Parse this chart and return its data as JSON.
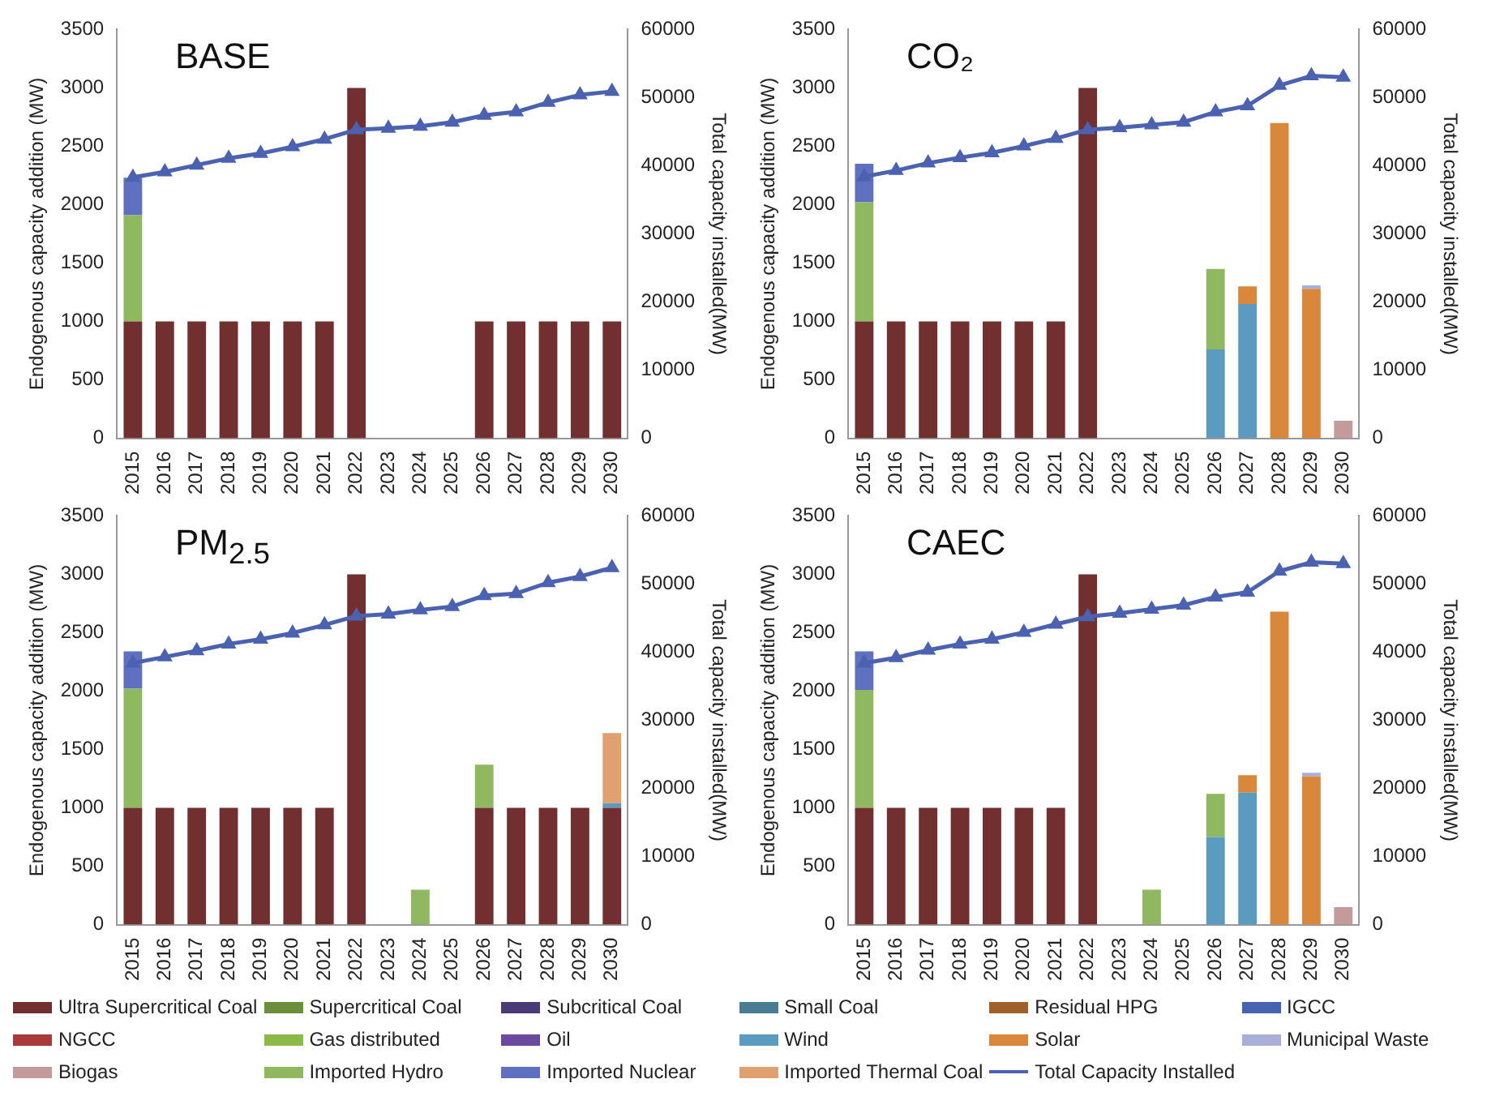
{
  "chart_data": [
    {
      "type": "bar",
      "title": "BASE",
      "stacked": true,
      "grid": false,
      "marker": "triangle",
      "categories": [
        "2015",
        "2016",
        "2017",
        "2018",
        "2019",
        "2020",
        "2021",
        "2022",
        "2023",
        "2024",
        "2025",
        "2026",
        "2027",
        "2028",
        "2029",
        "2030"
      ],
      "ylabel": "Endogenous capacity addition (MW)",
      "y2label": "Total capacity installed(MW)",
      "ylim": [
        0,
        3500
      ],
      "yticks": [
        0,
        500,
        1000,
        1500,
        2000,
        2500,
        3000,
        3500
      ],
      "y2lim": [
        0,
        60000
      ],
      "y2ticks": [
        0,
        10000,
        20000,
        30000,
        40000,
        50000,
        60000
      ],
      "series": [
        {
          "color": "#722f2f",
          "values": [
            1000,
            1000,
            1000,
            1000,
            1000,
            1000,
            1000,
            3000,
            null,
            null,
            null,
            1000,
            1000,
            1000,
            1000,
            1000
          ]
        },
        {
          "color": "#8fb860",
          "values": [
            910,
            null,
            null,
            null,
            null,
            null,
            null,
            null,
            null,
            null,
            null,
            null,
            null,
            null,
            null,
            null
          ]
        },
        {
          "color": "#6070c0",
          "values": [
            320,
            null,
            null,
            null,
            null,
            null,
            null,
            null,
            null,
            null,
            null,
            null,
            null,
            null,
            null,
            null
          ]
        },
        {
          "type": "line",
          "axis": "y2",
          "color": "#4a62b0",
          "values": [
            38300,
            39100,
            40100,
            41100,
            41800,
            42800,
            43900,
            45300,
            45500,
            45800,
            46400,
            47400,
            47900,
            49300,
            50400,
            50900
          ]
        }
      ]
    },
    {
      "type": "bar",
      "title": "CO₂",
      "stacked": true,
      "grid": false,
      "marker": "triangle",
      "categories": [
        "2015",
        "2016",
        "2017",
        "2018",
        "2019",
        "2020",
        "2021",
        "2022",
        "2023",
        "2024",
        "2025",
        "2026",
        "2027",
        "2028",
        "2029",
        "2030"
      ],
      "ylabel": "Endogenous capacity addition (MW)",
      "y2label": "Total capacity installed(MW)",
      "ylim": [
        0,
        3500
      ],
      "yticks": [
        0,
        500,
        1000,
        1500,
        2000,
        2500,
        3000,
        3500
      ],
      "y2lim": [
        0,
        60000
      ],
      "y2ticks": [
        0,
        10000,
        20000,
        30000,
        40000,
        50000,
        60000
      ],
      "series": [
        {
          "color": "#722f2f",
          "values": [
            1000,
            1000,
            1000,
            1000,
            1000,
            1000,
            1000,
            3000,
            null,
            null,
            null,
            null,
            null,
            null,
            null,
            null
          ]
        },
        {
          "color": "#5b9bc0",
          "values": [
            null,
            null,
            null,
            null,
            null,
            null,
            null,
            null,
            null,
            null,
            null,
            760,
            1150,
            null,
            null,
            null
          ]
        },
        {
          "color": "#d9873a",
          "values": [
            null,
            null,
            null,
            null,
            null,
            null,
            null,
            null,
            null,
            null,
            null,
            null,
            150,
            2700,
            1280,
            null
          ]
        },
        {
          "color": "#a8b0d8",
          "values": [
            null,
            null,
            null,
            null,
            null,
            null,
            null,
            null,
            null,
            null,
            null,
            null,
            null,
            null,
            30,
            null
          ]
        },
        {
          "color": "#c49a9a",
          "values": [
            null,
            null,
            null,
            null,
            null,
            null,
            null,
            null,
            null,
            null,
            null,
            null,
            null,
            null,
            null,
            150
          ]
        },
        {
          "color": "#8fb860",
          "values": [
            1020,
            null,
            null,
            null,
            null,
            null,
            null,
            null,
            null,
            null,
            null,
            690,
            null,
            null,
            null,
            null
          ]
        },
        {
          "color": "#6070c0",
          "values": [
            330,
            null,
            null,
            null,
            null,
            null,
            null,
            null,
            null,
            null,
            null,
            null,
            null,
            null,
            null,
            null
          ]
        },
        {
          "type": "line",
          "axis": "y2",
          "color": "#4a62b0",
          "values": [
            38400,
            39300,
            40400,
            41200,
            41900,
            42900,
            44000,
            45300,
            45600,
            46000,
            46400,
            47900,
            48800,
            51800,
            53200,
            53000
          ]
        }
      ]
    },
    {
      "type": "bar",
      "title": "PM$_{2.5}$",
      "stacked": true,
      "grid": false,
      "marker": "triangle",
      "categories": [
        "2015",
        "2016",
        "2017",
        "2018",
        "2019",
        "2020",
        "2021",
        "2022",
        "2023",
        "2024",
        "2025",
        "2026",
        "2027",
        "2028",
        "2029",
        "2030"
      ],
      "ylabel": "Endogenous capacity addition (MW)",
      "y2label": "Total capacity installed(MW)",
      "ylim": [
        0,
        3500
      ],
      "yticks": [
        0,
        500,
        1000,
        1500,
        2000,
        2500,
        3000,
        3500
      ],
      "y2lim": [
        0,
        60000
      ],
      "y2ticks": [
        0,
        10000,
        20000,
        30000,
        40000,
        50000,
        60000
      ],
      "series": [
        {
          "color": "#722f2f",
          "values": [
            1000,
            1000,
            1000,
            1000,
            1000,
            1000,
            1000,
            3000,
            null,
            null,
            null,
            1000,
            1000,
            1000,
            1000,
            1000
          ]
        },
        {
          "color": "#5b9bc0",
          "values": [
            null,
            null,
            null,
            null,
            null,
            null,
            null,
            null,
            null,
            null,
            null,
            null,
            null,
            null,
            null,
            40
          ]
        },
        {
          "color": "#8fb860",
          "values": [
            1020,
            null,
            null,
            null,
            null,
            null,
            null,
            null,
            null,
            300,
            null,
            370,
            null,
            null,
            null,
            null
          ]
        },
        {
          "color": "#6070c0",
          "values": [
            320,
            null,
            null,
            null,
            null,
            null,
            null,
            null,
            null,
            null,
            null,
            null,
            null,
            null,
            null,
            null
          ]
        },
        {
          "color": "#e0a070",
          "values": [
            null,
            null,
            null,
            null,
            null,
            null,
            null,
            null,
            null,
            null,
            null,
            null,
            null,
            null,
            null,
            600
          ]
        },
        {
          "type": "line",
          "axis": "y2",
          "color": "#4a62b0",
          "values": [
            38400,
            39300,
            40200,
            41200,
            41900,
            42800,
            44000,
            45300,
            45600,
            46200,
            46700,
            48300,
            48600,
            50200,
            51100,
            52400
          ]
        }
      ]
    },
    {
      "type": "bar",
      "title": "CAEC",
      "stacked": true,
      "legend": "bottom",
      "grid": false,
      "marker": "triangle",
      "categories": [
        "2015",
        "2016",
        "2017",
        "2018",
        "2019",
        "2020",
        "2021",
        "2022",
        "2023",
        "2024",
        "2025",
        "2026",
        "2027",
        "2028",
        "2029",
        "2030"
      ],
      "ylabel": "Endogenous capacity addition (MW)",
      "y2label": "Total capacity installed(MW)",
      "ylim": [
        0,
        3500
      ],
      "yticks": [
        0,
        500,
        1000,
        1500,
        2000,
        2500,
        3000,
        3500
      ],
      "y2lim": [
        0,
        60000
      ],
      "y2ticks": [
        0,
        10000,
        20000,
        30000,
        40000,
        50000,
        60000
      ],
      "series": [
        {
          "name": "Ultra Supercritical Coal",
          "color": "#722f2f",
          "values": [
            1000,
            1000,
            1000,
            1000,
            1000,
            1000,
            1000,
            3000,
            null,
            null,
            null,
            null,
            null,
            null,
            null,
            null
          ]
        },
        {
          "name": "Supercritical Coal",
          "color": "#6b8e3a",
          "values": [
            null,
            null,
            null,
            null,
            null,
            null,
            null,
            null,
            null,
            null,
            null,
            null,
            null,
            null,
            null,
            null
          ]
        },
        {
          "name": "Subcritical Coal",
          "color": "#4b3a78",
          "values": [
            null,
            null,
            null,
            null,
            null,
            null,
            null,
            null,
            null,
            null,
            null,
            null,
            null,
            null,
            null,
            null
          ]
        },
        {
          "name": "Small Coal",
          "color": "#4a7d94",
          "values": [
            null,
            null,
            null,
            null,
            null,
            null,
            null,
            null,
            null,
            null,
            null,
            null,
            null,
            null,
            null,
            null
          ]
        },
        {
          "name": "Residual HPG",
          "color": "#a0602a",
          "values": [
            null,
            null,
            null,
            null,
            null,
            null,
            null,
            null,
            null,
            null,
            null,
            null,
            null,
            null,
            null,
            null
          ]
        },
        {
          "name": "IGCC",
          "color": "#4662b0",
          "values": [
            null,
            null,
            null,
            null,
            null,
            null,
            null,
            null,
            null,
            null,
            null,
            null,
            null,
            null,
            null,
            null
          ]
        },
        {
          "name": "NGCC",
          "color": "#a83a3a",
          "values": [
            null,
            null,
            null,
            null,
            null,
            null,
            null,
            null,
            null,
            null,
            null,
            null,
            null,
            null,
            null,
            null
          ]
        },
        {
          "name": "Gas distributed",
          "color": "#8db84a",
          "values": [
            null,
            null,
            null,
            null,
            null,
            null,
            null,
            null,
            null,
            null,
            null,
            null,
            null,
            null,
            null,
            null
          ]
        },
        {
          "name": "Oil",
          "color": "#6a4a9e",
          "values": [
            null,
            null,
            null,
            null,
            null,
            null,
            null,
            null,
            null,
            null,
            null,
            null,
            null,
            null,
            null,
            null
          ]
        },
        {
          "name": "Wind",
          "color": "#5b9bc0",
          "values": [
            null,
            null,
            null,
            null,
            null,
            null,
            null,
            null,
            null,
            null,
            null,
            750,
            1130,
            null,
            null,
            null
          ]
        },
        {
          "name": "Solar",
          "color": "#d9873a",
          "values": [
            null,
            null,
            null,
            null,
            null,
            null,
            null,
            null,
            null,
            null,
            null,
            null,
            150,
            2680,
            1270,
            null
          ]
        },
        {
          "name": "Municipal Waste",
          "color": "#a8b0d8",
          "values": [
            null,
            null,
            null,
            null,
            null,
            null,
            null,
            null,
            null,
            null,
            null,
            null,
            null,
            null,
            30,
            null
          ]
        },
        {
          "name": "Biogas",
          "color": "#c49a9a",
          "values": [
            null,
            null,
            null,
            null,
            null,
            null,
            null,
            null,
            null,
            null,
            null,
            null,
            null,
            null,
            null,
            150
          ]
        },
        {
          "name": "Imported Hydro",
          "color": "#8fb860",
          "values": [
            1010,
            null,
            null,
            null,
            null,
            null,
            null,
            null,
            null,
            300,
            null,
            370,
            null,
            null,
            null,
            null
          ]
        },
        {
          "name": "Imported Nuclear",
          "color": "#6070c0",
          "values": [
            330,
            null,
            null,
            null,
            null,
            null,
            null,
            null,
            null,
            null,
            null,
            null,
            null,
            null,
            null,
            null
          ]
        },
        {
          "name": "Imported Thermal Coal",
          "color": "#e0a070",
          "values": [
            null,
            null,
            null,
            null,
            null,
            null,
            null,
            null,
            null,
            null,
            null,
            null,
            null,
            null,
            null,
            null
          ]
        },
        {
          "name": "Total Capacity Installed",
          "type": "line",
          "axis": "y2",
          "color": "#4a62b0",
          "values": [
            38400,
            39200,
            40300,
            41200,
            41900,
            42900,
            44100,
            45200,
            45700,
            46300,
            46900,
            48100,
            48800,
            51900,
            53200,
            53000
          ]
        }
      ]
    }
  ]
}
